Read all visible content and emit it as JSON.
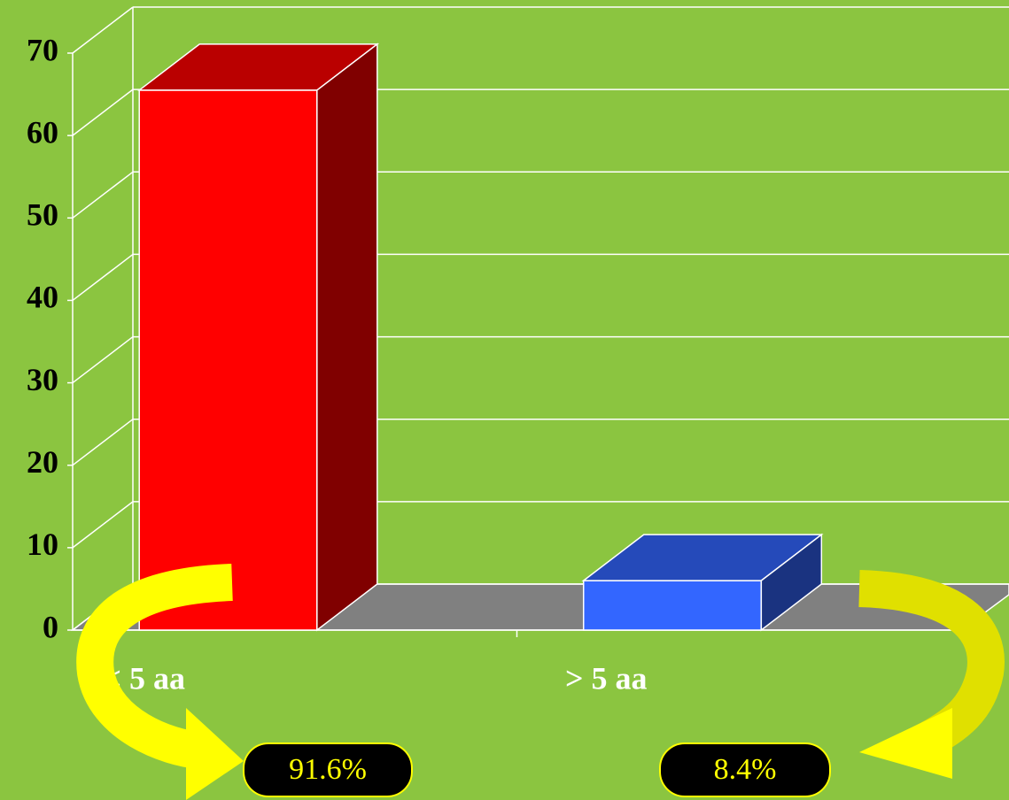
{
  "chart_data": {
    "type": "bar3d",
    "categories": [
      "< 5 aa",
      "> 5 aa"
    ],
    "values": [
      65.5,
      6
    ],
    "colors": [
      "#ff0000",
      "#3366ff"
    ],
    "ylim": [
      0,
      70
    ],
    "yticks": [
      0,
      10,
      20,
      30,
      40,
      50,
      60,
      70
    ],
    "grid": true,
    "annotations": [
      "91.6%",
      "8.4%"
    ]
  }
}
